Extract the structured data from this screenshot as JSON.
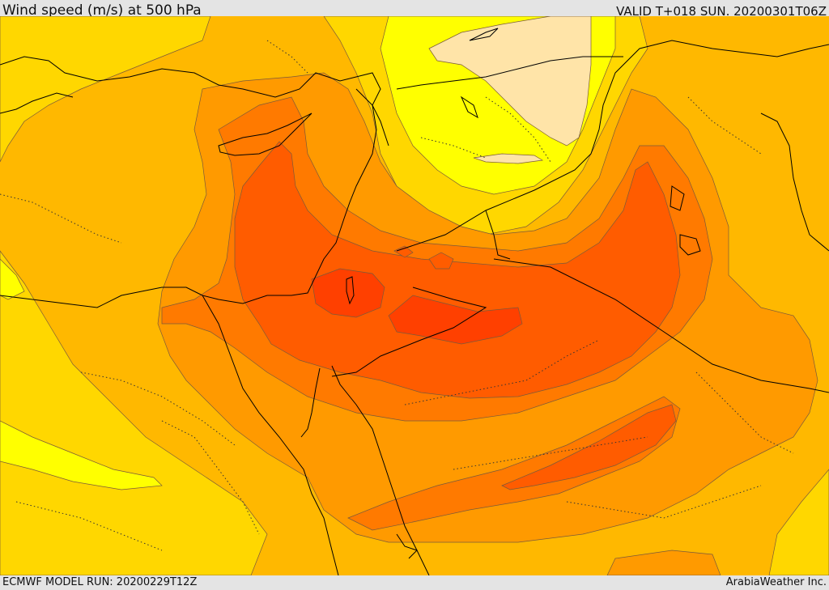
{
  "header": {
    "title": "Wind speed (m/s) at 500 hPa",
    "valid": "VALID T+018 SUN. 20200301T06Z"
  },
  "footer": {
    "model_run": "ECMWF MODEL RUN: 20200229T12Z",
    "credit": "ArabiaWeather Inc."
  },
  "colors": {
    "band_15_20": "#ffe4a8",
    "band_20_25": "#ffff00",
    "band_25_30": "#ffd700",
    "band_30_35": "#ffb800",
    "band_35_40": "#ff9a00",
    "band_40_45": "#ff7a00",
    "band_45_50": "#ff5c00",
    "band_50_55": "#ff4000",
    "coastline": "#000000",
    "border": "#000000"
  }
}
